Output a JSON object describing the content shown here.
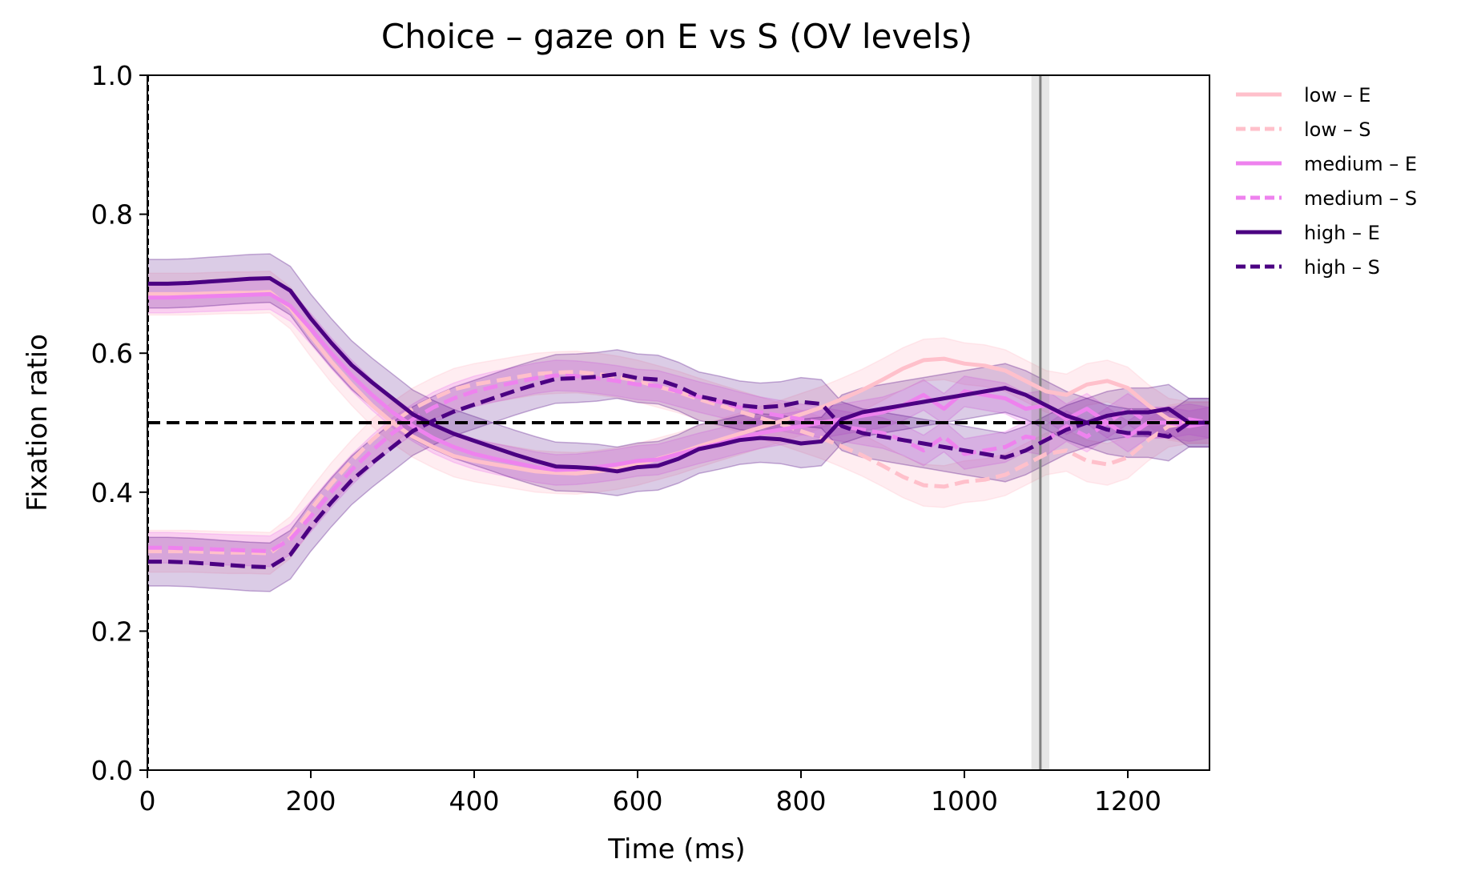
{
  "chart_data": {
    "type": "line",
    "title": "Choice – gaze on E vs S (OV levels)",
    "xlabel": "Time (ms)",
    "ylabel": "Fixation ratio",
    "xlim": [
      0,
      1300
    ],
    "ylim": [
      0,
      1
    ],
    "xticks": [
      0,
      200,
      400,
      600,
      800,
      1000,
      1200
    ],
    "yticks": [
      0.0,
      0.2,
      0.4,
      0.6,
      0.8,
      1.0
    ],
    "xtick_labels": [
      "0",
      "200",
      "400",
      "600",
      "800",
      "1000",
      "1200"
    ],
    "ytick_labels": [
      "0.0",
      "0.2",
      "0.4",
      "0.6",
      "0.8",
      "1.0"
    ],
    "grid": false,
    "legend_position": "outside-right",
    "reference_lines": {
      "horizontal_dashed_y": 0.5,
      "vertical_dashed_x": 0,
      "vertical_solid_x": 1093,
      "vertical_band_x": [
        1082,
        1104
      ]
    },
    "x": [
      0,
      25,
      50,
      75,
      100,
      125,
      150,
      175,
      200,
      225,
      250,
      275,
      300,
      325,
      350,
      375,
      400,
      425,
      450,
      475,
      500,
      525,
      550,
      575,
      600,
      625,
      650,
      675,
      700,
      725,
      750,
      775,
      800,
      825,
      850,
      875,
      900,
      925,
      950,
      975,
      1000,
      1025,
      1050,
      1075,
      1100,
      1125,
      1150,
      1175,
      1200,
      1225,
      1250,
      1275,
      1300
    ],
    "series": [
      {
        "name": "low – E",
        "color": "#ffc0cb",
        "style": "solid",
        "band": 0.03,
        "values": [
          0.685,
          0.685,
          0.685,
          0.686,
          0.687,
          0.687,
          0.688,
          0.665,
          0.625,
          0.588,
          0.555,
          0.525,
          0.5,
          0.48,
          0.465,
          0.452,
          0.445,
          0.44,
          0.435,
          0.43,
          0.428,
          0.427,
          0.43,
          0.434,
          0.44,
          0.448,
          0.456,
          0.466,
          0.475,
          0.484,
          0.493,
          0.502,
          0.512,
          0.522,
          0.534,
          0.547,
          0.562,
          0.578,
          0.59,
          0.592,
          0.585,
          0.582,
          0.575,
          0.56,
          0.545,
          0.54,
          0.555,
          0.56,
          0.55,
          0.525,
          0.505,
          0.5,
          0.5
        ]
      },
      {
        "name": "low – S",
        "color": "#ffc0cb",
        "style": "dashed",
        "band": 0.03,
        "values": [
          0.315,
          0.315,
          0.315,
          0.314,
          0.313,
          0.313,
          0.312,
          0.335,
          0.375,
          0.412,
          0.445,
          0.475,
          0.5,
          0.52,
          0.535,
          0.548,
          0.555,
          0.56,
          0.565,
          0.57,
          0.572,
          0.573,
          0.57,
          0.566,
          0.56,
          0.552,
          0.544,
          0.534,
          0.525,
          0.516,
          0.507,
          0.498,
          0.488,
          0.478,
          0.466,
          0.453,
          0.438,
          0.422,
          0.41,
          0.408,
          0.415,
          0.418,
          0.425,
          0.44,
          0.455,
          0.46,
          0.445,
          0.44,
          0.45,
          0.475,
          0.495,
          0.5,
          0.5
        ]
      },
      {
        "name": "medium – E",
        "color": "#ee82ee",
        "style": "solid",
        "band": 0.022,
        "values": [
          0.68,
          0.68,
          0.681,
          0.682,
          0.683,
          0.684,
          0.685,
          0.668,
          0.635,
          0.6,
          0.568,
          0.54,
          0.515,
          0.495,
          0.478,
          0.465,
          0.455,
          0.448,
          0.442,
          0.436,
          0.432,
          0.433,
          0.436,
          0.44,
          0.445,
          0.447,
          0.455,
          0.463,
          0.47,
          0.478,
          0.485,
          0.49,
          0.495,
          0.5,
          0.505,
          0.51,
          0.515,
          0.525,
          0.54,
          0.52,
          0.545,
          0.54,
          0.535,
          0.52,
          0.525,
          0.505,
          0.52,
          0.5,
          0.48,
          0.5,
          0.5,
          0.495,
          0.5
        ]
      },
      {
        "name": "medium – S",
        "color": "#ee82ee",
        "style": "dashed",
        "band": 0.022,
        "values": [
          0.32,
          0.32,
          0.319,
          0.318,
          0.317,
          0.316,
          0.315,
          0.332,
          0.365,
          0.4,
          0.432,
          0.46,
          0.485,
          0.505,
          0.522,
          0.535,
          0.545,
          0.552,
          0.558,
          0.564,
          0.568,
          0.567,
          0.564,
          0.56,
          0.555,
          0.553,
          0.545,
          0.537,
          0.53,
          0.522,
          0.515,
          0.51,
          0.505,
          0.5,
          0.495,
          0.49,
          0.485,
          0.475,
          0.46,
          0.48,
          0.455,
          0.46,
          0.465,
          0.48,
          0.475,
          0.495,
          0.48,
          0.5,
          0.52,
          0.5,
          0.5,
          0.505,
          0.5
        ]
      },
      {
        "name": "high – E",
        "color": "#4b0082",
        "style": "solid",
        "band": 0.035,
        "values": [
          0.7,
          0.7,
          0.701,
          0.703,
          0.705,
          0.707,
          0.708,
          0.69,
          0.65,
          0.615,
          0.583,
          0.558,
          0.535,
          0.512,
          0.497,
          0.484,
          0.474,
          0.464,
          0.454,
          0.445,
          0.437,
          0.436,
          0.434,
          0.43,
          0.436,
          0.438,
          0.448,
          0.462,
          0.468,
          0.475,
          0.478,
          0.476,
          0.47,
          0.473,
          0.505,
          0.515,
          0.52,
          0.525,
          0.53,
          0.535,
          0.54,
          0.545,
          0.55,
          0.54,
          0.525,
          0.51,
          0.5,
          0.51,
          0.515,
          0.515,
          0.52,
          0.5,
          0.5
        ]
      },
      {
        "name": "high – S",
        "color": "#4b0082",
        "style": "dashed",
        "band": 0.035,
        "values": [
          0.3,
          0.3,
          0.299,
          0.297,
          0.295,
          0.293,
          0.292,
          0.31,
          0.35,
          0.385,
          0.417,
          0.442,
          0.465,
          0.488,
          0.503,
          0.516,
          0.526,
          0.536,
          0.546,
          0.555,
          0.563,
          0.564,
          0.566,
          0.57,
          0.564,
          0.562,
          0.552,
          0.538,
          0.532,
          0.525,
          0.522,
          0.524,
          0.53,
          0.527,
          0.495,
          0.485,
          0.48,
          0.475,
          0.47,
          0.465,
          0.46,
          0.455,
          0.45,
          0.46,
          0.475,
          0.49,
          0.5,
          0.49,
          0.485,
          0.485,
          0.48,
          0.5,
          0.5
        ]
      }
    ]
  }
}
